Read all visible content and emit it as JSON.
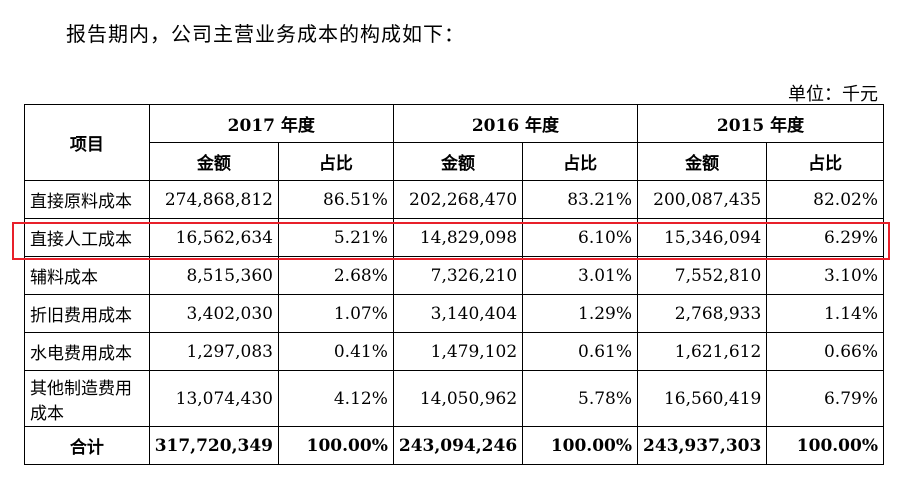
{
  "intro": "报告期内，公司主营业务成本的构成如下：",
  "unit": "单位：千元",
  "table": {
    "item_header": "项目",
    "years": [
      "2017 年度",
      "2016 年度",
      "2015 年度"
    ],
    "sub_headers": [
      "金额",
      "占比",
      "金额",
      "占比",
      "金额",
      "占比"
    ],
    "rows": [
      {
        "label": "直接原料成本",
        "cells": [
          "274,868,812",
          "86.51%",
          "202,268,470",
          "83.21%",
          "200,087,435",
          "82.02%"
        ]
      },
      {
        "label": "直接人工成本",
        "cells": [
          "16,562,634",
          "5.21%",
          "14,829,098",
          "6.10%",
          "15,346,094",
          "6.29%"
        ]
      },
      {
        "label": "辅料成本",
        "cells": [
          "8,515,360",
          "2.68%",
          "7,326,210",
          "3.01%",
          "7,552,810",
          "3.10%"
        ]
      },
      {
        "label": "折旧费用成本",
        "cells": [
          "3,402,030",
          "1.07%",
          "3,140,404",
          "1.29%",
          "2,768,933",
          "1.14%"
        ]
      },
      {
        "label": "水电费用成本",
        "cells": [
          "1,297,083",
          "0.41%",
          "1,479,102",
          "0.61%",
          "1,621,612",
          "0.66%"
        ]
      },
      {
        "label": "其他制造费用成本",
        "cells": [
          "13,074,430",
          "4.12%",
          "14,050,962",
          "5.78%",
          "16,560,419",
          "6.79%"
        ]
      }
    ],
    "total": {
      "label": "合计",
      "cells": [
        "317,720,349",
        "100.00%",
        "243,094,246",
        "100.00%",
        "243,937,303",
        "100.00%"
      ]
    }
  },
  "highlight_color": "#e8202a"
}
